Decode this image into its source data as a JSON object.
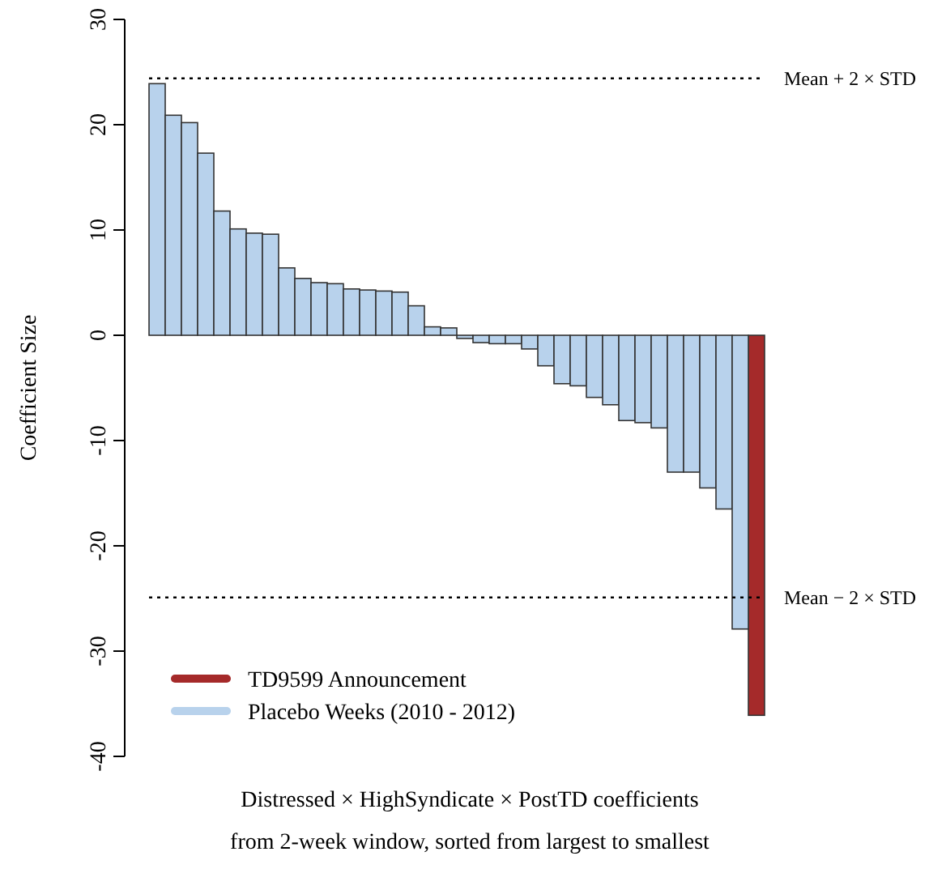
{
  "chart_data": {
    "type": "bar",
    "ylabel": "Coefficient Size",
    "xlabel": "Distressed × HighSyndicate × PostTD coefficients\nfrom 2-week window, sorted from largest to smallest",
    "categories": [
      null,
      null,
      null,
      null,
      null,
      null,
      null,
      null,
      null,
      null,
      null,
      null,
      null,
      null,
      null,
      null,
      null,
      null,
      null,
      null,
      null,
      null,
      null,
      null,
      null,
      null,
      null,
      null,
      null,
      null,
      null,
      null,
      null,
      null,
      null,
      null,
      null,
      null
    ],
    "series": [
      {
        "name": "TD9599 Announcement",
        "color": "#a52a2a",
        "values": [
          null,
          null,
          null,
          null,
          null,
          null,
          null,
          null,
          null,
          null,
          null,
          null,
          null,
          null,
          null,
          null,
          null,
          null,
          null,
          null,
          null,
          null,
          null,
          null,
          null,
          null,
          null,
          null,
          null,
          null,
          null,
          null,
          null,
          null,
          null,
          null,
          null,
          -36.1
        ]
      },
      {
        "name": "Placebo Weeks (2010 - 2012)",
        "color": "#b8d2ec",
        "values": [
          23.9,
          20.9,
          20.2,
          17.3,
          11.8,
          10.1,
          9.7,
          9.6,
          6.4,
          5.4,
          5.0,
          4.9,
          4.4,
          4.3,
          4.2,
          4.1,
          2.8,
          0.8,
          0.7,
          -0.3,
          -0.7,
          -0.8,
          -0.8,
          -1.3,
          -2.9,
          -4.6,
          -4.8,
          -5.9,
          -6.6,
          -8.1,
          -8.3,
          -8.8,
          -13.0,
          -13.0,
          -14.5,
          -16.5,
          -27.9,
          null
        ]
      }
    ],
    "ylim": [
      -40,
      30
    ],
    "yticks": [
      -40,
      -30,
      -20,
      -10,
      0,
      10,
      20,
      30
    ],
    "ref_lines": [
      {
        "axis": "y",
        "value": 24.4,
        "label": "Mean + 2 × STD",
        "line_style": "dotted"
      },
      {
        "axis": "y",
        "value": -24.9,
        "label": "Mean − 2 × STD",
        "line_style": "dotted"
      }
    ],
    "legend": "bottom left",
    "tick_labels": "y"
  }
}
